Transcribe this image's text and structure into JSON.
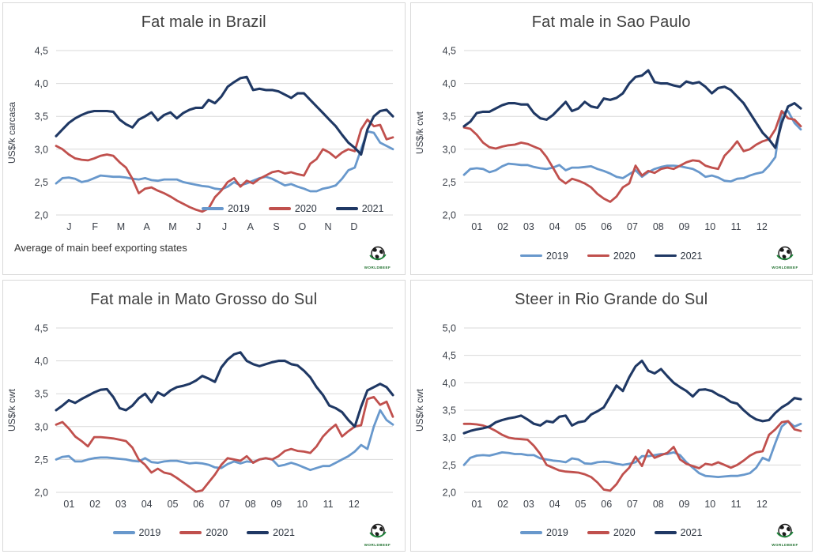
{
  "branding": {
    "logo_text": "WORLDBEEF",
    "logo_symbol": "globe"
  },
  "style": {
    "background": "#ffffff",
    "panel_border": "#d9d9d9",
    "grid_color": "#d9d9d9",
    "title_color": "#404040",
    "axis_text_color": "#3a3f48",
    "color_2019": "#6898CC",
    "color_2020": "#C0504D",
    "color_2021": "#1F3864"
  },
  "legend_labels": [
    "2019",
    "2020",
    "2021"
  ],
  "chart_data": [
    {
      "type": "line",
      "title": "Fat male in Brazil",
      "ylabel": "US$/k carcasa",
      "x_tick_labels": [
        "J",
        "F",
        "M",
        "A",
        "M",
        "J",
        "J",
        "A",
        "S",
        "O",
        "N",
        "D"
      ],
      "y_tick_labels": [
        "4,5",
        "4,0",
        "3,5",
        "3,0",
        "2,5",
        "2,0"
      ],
      "ylim": [
        2.0,
        4.5
      ],
      "y_tick_step": 0.5,
      "grid": "horizontal",
      "legend_position": "inside-bottom-right",
      "footnote": "Average of main beef exporting states",
      "series": [
        {
          "name": "2019",
          "color": "#6898CC",
          "values": [
            2.48,
            2.56,
            2.57,
            2.55,
            2.5,
            2.52,
            2.56,
            2.6,
            2.59,
            2.58,
            2.58,
            2.57,
            2.55,
            2.54,
            2.56,
            2.53,
            2.52,
            2.54,
            2.54,
            2.54,
            2.5,
            2.48,
            2.46,
            2.44,
            2.43,
            2.4,
            2.39,
            2.43,
            2.5,
            2.45,
            2.48,
            2.52,
            2.56,
            2.58,
            2.55,
            2.5,
            2.45,
            2.47,
            2.43,
            2.4,
            2.36,
            2.36,
            2.4,
            2.42,
            2.45,
            2.55,
            2.68,
            2.72,
            3.0,
            3.27,
            3.25,
            3.1,
            3.05,
            3.0
          ]
        },
        {
          "name": "2020",
          "color": "#C0504D",
          "values": [
            3.05,
            3.0,
            2.92,
            2.86,
            2.84,
            2.83,
            2.86,
            2.9,
            2.92,
            2.9,
            2.8,
            2.72,
            2.55,
            2.33,
            2.4,
            2.42,
            2.37,
            2.33,
            2.28,
            2.22,
            2.17,
            2.12,
            2.08,
            2.05,
            2.1,
            2.27,
            2.37,
            2.5,
            2.56,
            2.43,
            2.52,
            2.48,
            2.55,
            2.6,
            2.65,
            2.67,
            2.63,
            2.65,
            2.62,
            2.6,
            2.78,
            2.85,
            3.0,
            2.95,
            2.87,
            2.95,
            3.0,
            2.97,
            3.3,
            3.45,
            3.35,
            3.37,
            3.15,
            3.18
          ]
        },
        {
          "name": "2021",
          "color": "#1F3864",
          "values": [
            3.2,
            3.3,
            3.4,
            3.47,
            3.52,
            3.56,
            3.58,
            3.58,
            3.58,
            3.57,
            3.45,
            3.38,
            3.33,
            3.45,
            3.5,
            3.56,
            3.44,
            3.52,
            3.56,
            3.47,
            3.55,
            3.6,
            3.63,
            3.63,
            3.75,
            3.7,
            3.8,
            3.95,
            4.02,
            4.08,
            4.1,
            3.9,
            3.92,
            3.9,
            3.9,
            3.88,
            3.83,
            3.78,
            3.85,
            3.85,
            3.75,
            3.65,
            3.55,
            3.45,
            3.35,
            3.22,
            3.1,
            3.02,
            2.92,
            3.3,
            3.5,
            3.58,
            3.6,
            3.5
          ]
        }
      ]
    },
    {
      "type": "line",
      "title": "Fat male in Sao Paulo",
      "ylabel": "US$/k cwt",
      "x_tick_labels": [
        "01",
        "02",
        "03",
        "04",
        "05",
        "06",
        "07",
        "08",
        "09",
        "10",
        "11",
        "12"
      ],
      "y_tick_labels": [
        "4,5",
        "4,0",
        "3,5",
        "3,0",
        "2,5",
        "2,0"
      ],
      "ylim": [
        2.0,
        4.5
      ],
      "y_tick_step": 0.5,
      "grid": "horizontal",
      "legend_position": "below-center",
      "series": [
        {
          "name": "2019",
          "color": "#6898CC",
          "values": [
            2.61,
            2.7,
            2.71,
            2.7,
            2.65,
            2.68,
            2.74,
            2.78,
            2.77,
            2.76,
            2.76,
            2.73,
            2.71,
            2.7,
            2.72,
            2.76,
            2.68,
            2.72,
            2.72,
            2.73,
            2.74,
            2.7,
            2.67,
            2.63,
            2.58,
            2.56,
            2.62,
            2.68,
            2.58,
            2.65,
            2.7,
            2.73,
            2.75,
            2.75,
            2.74,
            2.72,
            2.7,
            2.65,
            2.58,
            2.6,
            2.57,
            2.52,
            2.51,
            2.55,
            2.56,
            2.6,
            2.63,
            2.65,
            2.75,
            2.88,
            3.55,
            3.58,
            3.4,
            3.3
          ]
        },
        {
          "name": "2020",
          "color": "#C0504D",
          "values": [
            3.33,
            3.31,
            3.22,
            3.1,
            3.03,
            3.01,
            3.04,
            3.06,
            3.07,
            3.1,
            3.08,
            3.04,
            3.0,
            2.88,
            2.72,
            2.55,
            2.48,
            2.55,
            2.52,
            2.48,
            2.42,
            2.32,
            2.25,
            2.2,
            2.28,
            2.42,
            2.48,
            2.75,
            2.6,
            2.67,
            2.64,
            2.7,
            2.72,
            2.7,
            2.75,
            2.8,
            2.83,
            2.82,
            2.75,
            2.72,
            2.7,
            2.9,
            3.0,
            3.12,
            2.97,
            3.0,
            3.07,
            3.12,
            3.15,
            3.3,
            3.58,
            3.47,
            3.45,
            3.35
          ]
        },
        {
          "name": "2021",
          "color": "#1F3864",
          "values": [
            3.35,
            3.42,
            3.55,
            3.57,
            3.57,
            3.62,
            3.67,
            3.7,
            3.7,
            3.68,
            3.68,
            3.55,
            3.47,
            3.45,
            3.52,
            3.62,
            3.72,
            3.58,
            3.62,
            3.72,
            3.65,
            3.63,
            3.77,
            3.75,
            3.78,
            3.85,
            4.0,
            4.1,
            4.12,
            4.2,
            4.02,
            4.0,
            4.0,
            3.97,
            3.95,
            4.03,
            4.0,
            4.02,
            3.95,
            3.85,
            3.93,
            3.95,
            3.9,
            3.8,
            3.7,
            3.55,
            3.4,
            3.25,
            3.15,
            3.02,
            3.4,
            3.65,
            3.7,
            3.62
          ]
        }
      ]
    },
    {
      "type": "line",
      "title": "Fat male in Mato Grosso do Sul",
      "ylabel": "US$/k cwt",
      "x_tick_labels": [
        "01",
        "02",
        "03",
        "04",
        "05",
        "06",
        "07",
        "08",
        "09",
        "10",
        "11",
        "12"
      ],
      "y_tick_labels": [
        "4,5",
        "4,0",
        "3,5",
        "3,0",
        "2,5",
        "2,0"
      ],
      "ylim": [
        2.0,
        4.5
      ],
      "y_tick_step": 0.5,
      "grid": "horizontal",
      "legend_position": "below-center",
      "series": [
        {
          "name": "2019",
          "color": "#6898CC",
          "values": [
            2.5,
            2.54,
            2.55,
            2.47,
            2.47,
            2.5,
            2.52,
            2.53,
            2.53,
            2.52,
            2.51,
            2.5,
            2.48,
            2.47,
            2.52,
            2.46,
            2.45,
            2.47,
            2.48,
            2.48,
            2.46,
            2.44,
            2.45,
            2.44,
            2.42,
            2.38,
            2.37,
            2.43,
            2.47,
            2.44,
            2.47,
            2.46,
            2.5,
            2.52,
            2.5,
            2.4,
            2.42,
            2.45,
            2.42,
            2.38,
            2.34,
            2.37,
            2.4,
            2.4,
            2.45,
            2.5,
            2.55,
            2.62,
            2.72,
            2.66,
            3.0,
            3.25,
            3.1,
            3.03
          ]
        },
        {
          "name": "2020",
          "color": "#C0504D",
          "values": [
            3.03,
            3.07,
            2.97,
            2.85,
            2.78,
            2.7,
            2.84,
            2.84,
            2.83,
            2.82,
            2.8,
            2.78,
            2.68,
            2.5,
            2.42,
            2.3,
            2.36,
            2.3,
            2.28,
            2.22,
            2.15,
            2.08,
            2.01,
            2.03,
            2.15,
            2.27,
            2.42,
            2.52,
            2.5,
            2.48,
            2.55,
            2.45,
            2.5,
            2.52,
            2.5,
            2.55,
            2.63,
            2.66,
            2.63,
            2.62,
            2.6,
            2.7,
            2.85,
            2.95,
            3.03,
            2.85,
            2.93,
            3.0,
            3.02,
            3.42,
            3.45,
            3.33,
            3.38,
            3.15
          ]
        },
        {
          "name": "2021",
          "color": "#1F3864",
          "values": [
            3.25,
            3.32,
            3.4,
            3.36,
            3.42,
            3.47,
            3.52,
            3.56,
            3.57,
            3.45,
            3.28,
            3.25,
            3.32,
            3.43,
            3.5,
            3.37,
            3.52,
            3.47,
            3.55,
            3.6,
            3.62,
            3.65,
            3.7,
            3.77,
            3.73,
            3.68,
            3.9,
            4.02,
            4.1,
            4.13,
            4.0,
            3.95,
            3.92,
            3.95,
            3.98,
            4.0,
            4.0,
            3.95,
            3.93,
            3.85,
            3.75,
            3.6,
            3.48,
            3.32,
            3.28,
            3.22,
            3.1,
            3.0,
            3.3,
            3.55,
            3.6,
            3.65,
            3.6,
            3.48
          ]
        }
      ]
    },
    {
      "type": "line",
      "title": "Steer in Rio Grande do Sul",
      "ylabel": "US$/k cwt",
      "x_tick_labels": [
        "01",
        "02",
        "03",
        "04",
        "05",
        "06",
        "07",
        "08",
        "09",
        "10",
        "11",
        "12"
      ],
      "y_tick_labels": [
        "5,0",
        "4,5",
        "4,0",
        "3,5",
        "3,0",
        "2,5",
        "2,0"
      ],
      "ylim": [
        2.0,
        5.0
      ],
      "y_tick_step": 0.5,
      "grid": "horizontal",
      "legend_position": "below-center",
      "series": [
        {
          "name": "2019",
          "color": "#6898CC",
          "values": [
            2.5,
            2.63,
            2.67,
            2.68,
            2.67,
            2.7,
            2.73,
            2.72,
            2.7,
            2.7,
            2.68,
            2.68,
            2.62,
            2.6,
            2.58,
            2.57,
            2.55,
            2.62,
            2.6,
            2.53,
            2.52,
            2.55,
            2.56,
            2.55,
            2.52,
            2.5,
            2.52,
            2.55,
            2.66,
            2.66,
            2.68,
            2.7,
            2.7,
            2.73,
            2.68,
            2.55,
            2.45,
            2.35,
            2.3,
            2.29,
            2.28,
            2.29,
            2.3,
            2.3,
            2.32,
            2.35,
            2.45,
            2.63,
            2.58,
            2.9,
            3.2,
            3.3,
            3.2,
            3.25
          ]
        },
        {
          "name": "2020",
          "color": "#C0504D",
          "values": [
            3.25,
            3.25,
            3.24,
            3.22,
            3.18,
            3.12,
            3.05,
            3.0,
            2.98,
            2.97,
            2.96,
            2.85,
            2.7,
            2.5,
            2.45,
            2.4,
            2.38,
            2.37,
            2.36,
            2.33,
            2.28,
            2.18,
            2.05,
            2.03,
            2.15,
            2.33,
            2.45,
            2.65,
            2.48,
            2.77,
            2.63,
            2.68,
            2.72,
            2.83,
            2.6,
            2.52,
            2.48,
            2.44,
            2.52,
            2.5,
            2.55,
            2.5,
            2.45,
            2.5,
            2.58,
            2.67,
            2.73,
            2.75,
            3.05,
            3.15,
            3.28,
            3.3,
            3.15,
            3.12
          ]
        },
        {
          "name": "2021",
          "color": "#1F3864",
          "values": [
            3.08,
            3.12,
            3.15,
            3.17,
            3.2,
            3.28,
            3.32,
            3.35,
            3.37,
            3.4,
            3.33,
            3.25,
            3.22,
            3.3,
            3.28,
            3.38,
            3.4,
            3.22,
            3.28,
            3.3,
            3.42,
            3.48,
            3.55,
            3.75,
            3.95,
            3.85,
            4.1,
            4.3,
            4.4,
            4.22,
            4.17,
            4.25,
            4.12,
            4.0,
            3.92,
            3.85,
            3.75,
            3.87,
            3.88,
            3.85,
            3.78,
            3.73,
            3.65,
            3.62,
            3.5,
            3.4,
            3.33,
            3.3,
            3.32,
            3.45,
            3.55,
            3.62,
            3.72,
            3.7
          ]
        }
      ]
    }
  ]
}
